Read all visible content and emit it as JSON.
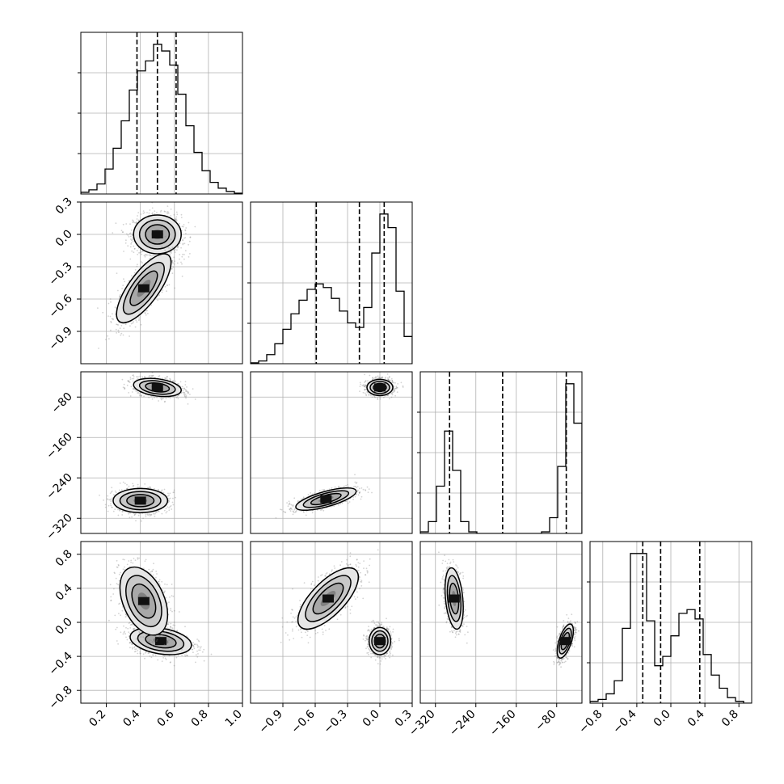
{
  "chart_data": {
    "type": "corner",
    "parameters": 4,
    "grid": true,
    "colors": {
      "line": "#000000",
      "grid": "#b0b0b0",
      "background": "#ffffff",
      "points": "#808080"
    },
    "axes": [
      {
        "range": [
          0.05,
          1.0
        ],
        "ticks": [
          0.2,
          0.4,
          0.6,
          0.8,
          1.0
        ],
        "tick_labels": [
          "0.2",
          "0.4",
          "0.6",
          "0.8",
          "1.0"
        ]
      },
      {
        "range": [
          -1.2,
          0.3
        ],
        "ticks": [
          -0.9,
          -0.6,
          -0.3,
          0.0,
          0.3
        ],
        "tick_labels": [
          "−0.9",
          "−0.6",
          "−0.3",
          "0.0",
          "0.3"
        ]
      },
      {
        "range": [
          -350,
          -30
        ],
        "ticks": [
          -320,
          -240,
          -160,
          -80
        ],
        "tick_labels": [
          "−320",
          "−240",
          "−160",
          "−80"
        ]
      },
      {
        "range": [
          -0.95,
          0.95
        ],
        "ticks": [
          -0.8,
          -0.4,
          0.0,
          0.4,
          0.8
        ],
        "tick_labels": [
          "−0.8",
          "−0.4",
          "0.0",
          "0.4",
          "0.8"
        ]
      }
    ],
    "histograms": [
      {
        "param": 0,
        "bins": 20,
        "quantiles": [
          0.38,
          0.5,
          0.61
        ],
        "counts": [
          2,
          5,
          12,
          30,
          55,
          88,
          125,
          148,
          160,
          180,
          172,
          155,
          120,
          82,
          50,
          28,
          14,
          7,
          3,
          1
        ]
      },
      {
        "param": 1,
        "bins": 20,
        "quantiles": [
          -0.59,
          -0.19,
          0.04
        ],
        "counts": [
          1,
          3,
          10,
          22,
          38,
          55,
          70,
          82,
          88,
          84,
          72,
          58,
          45,
          40,
          62,
          122,
          165,
          150,
          80,
          30
        ]
      },
      {
        "param": 2,
        "bins": 20,
        "quantiles": [
          -292,
          -187,
          -61
        ],
        "counts": [
          2,
          15,
          60,
          130,
          80,
          15,
          2,
          0,
          0,
          0,
          0,
          0,
          0,
          0,
          0,
          2,
          20,
          85,
          190,
          140
        ]
      },
      {
        "param": 3,
        "bins": 20,
        "quantiles": [
          -0.33,
          -0.12,
          0.34
        ],
        "counts": [
          1,
          2,
          5,
          12,
          40,
          80,
          80,
          44,
          20,
          25,
          36,
          48,
          50,
          45,
          26,
          15,
          8,
          3,
          1,
          0
        ]
      }
    ],
    "scatter_panels": [
      {
        "row": 1,
        "col": 0,
        "clusters": [
          {
            "x": 0.5,
            "y": 0.0,
            "sx": 0.07,
            "sy": 0.09,
            "rho": 0.0,
            "n": 1300
          },
          {
            "x": 0.42,
            "y": -0.5,
            "sx": 0.08,
            "sy": 0.16,
            "rho": 0.75,
            "n": 1000
          }
        ]
      },
      {
        "row": 2,
        "col": 0,
        "clusters": [
          {
            "x": 0.5,
            "y": -61,
            "sx": 0.07,
            "sy": 9,
            "rho": -0.3,
            "n": 1200
          },
          {
            "x": 0.4,
            "y": -285,
            "sx": 0.08,
            "sy": 12,
            "rho": 0.0,
            "n": 1100
          }
        ]
      },
      {
        "row": 2,
        "col": 1,
        "clusters": [
          {
            "x": 0.0,
            "y": -61,
            "sx": 0.06,
            "sy": 8,
            "rho": 0.0,
            "n": 1200
          },
          {
            "x": -0.5,
            "y": -282,
            "sx": 0.14,
            "sy": 11,
            "rho": 0.7,
            "n": 1100
          }
        ]
      },
      {
        "row": 3,
        "col": 0,
        "clusters": [
          {
            "x": 0.52,
            "y": -0.22,
            "sx": 0.09,
            "sy": 0.08,
            "rho": -0.3,
            "n": 1200
          },
          {
            "x": 0.42,
            "y": 0.25,
            "sx": 0.07,
            "sy": 0.2,
            "rho": -0.4,
            "n": 1000
          }
        ]
      },
      {
        "row": 3,
        "col": 1,
        "clusters": [
          {
            "x": 0.0,
            "y": -0.22,
            "sx": 0.05,
            "sy": 0.08,
            "rho": 0.0,
            "n": 1200
          },
          {
            "x": -0.48,
            "y": 0.28,
            "sx": 0.14,
            "sy": 0.18,
            "rho": 0.7,
            "n": 1000
          }
        ]
      },
      {
        "row": 3,
        "col": 2,
        "clusters": [
          {
            "x": -283,
            "y": 0.28,
            "sx": 9,
            "sy": 0.18,
            "rho": -0.3,
            "n": 1000
          },
          {
            "x": -63,
            "y": -0.22,
            "sx": 8,
            "sy": 0.1,
            "rho": 0.6,
            "n": 1200
          }
        ]
      }
    ]
  }
}
